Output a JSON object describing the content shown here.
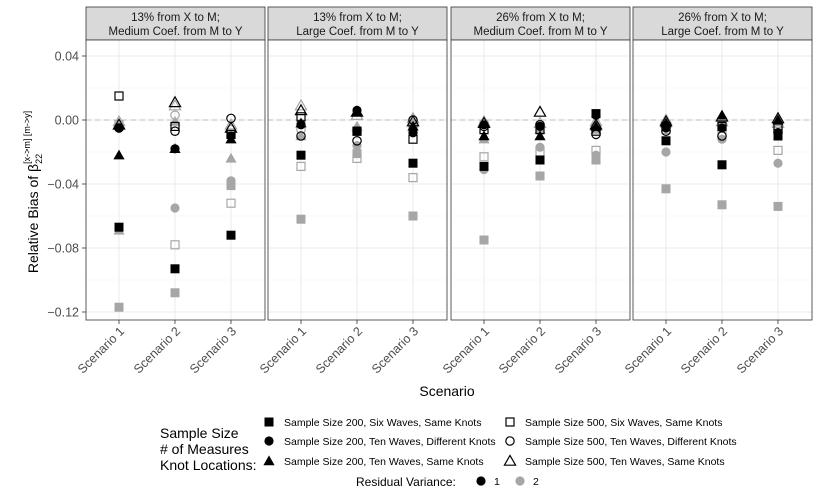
{
  "chart_data": {
    "type": "scatter",
    "ylabel_main": "Relative Bias of β",
    "ylabel_sub": "22",
    "ylabel_sup": "[x->m] [m->y]",
    "xlabel": "Scenario",
    "categories": [
      "Scenario 1",
      "Scenario 2",
      "Scenario 3"
    ],
    "ylim": [
      -0.125,
      0.05
    ],
    "yticks": [
      0.04,
      0.0,
      -0.04,
      -0.08,
      -0.12
    ],
    "ytick_labels": [
      "0.04",
      "0.00",
      "−0.04",
      "−0.08",
      "−0.12"
    ],
    "reference_line": 0,
    "panels": [
      {
        "title_line1": "13% from X to M;",
        "title_line2": "Medium Coef. from M to Y",
        "series": [
          {
            "condition": "n200_six_same",
            "variance": 1,
            "values": [
              -0.067,
              -0.093,
              -0.072
            ]
          },
          {
            "condition": "n200_six_same",
            "variance": 2,
            "values": [
              -0.117,
              -0.108,
              -0.041
            ]
          },
          {
            "condition": "n200_ten_diff",
            "variance": 1,
            "values": [
              -0.005,
              -0.018,
              -0.01
            ]
          },
          {
            "condition": "n200_ten_diff",
            "variance": 2,
            "values": [
              -0.004,
              -0.055,
              -0.038
            ]
          },
          {
            "condition": "n200_ten_same",
            "variance": 1,
            "values": [
              -0.022,
              -0.018,
              -0.012
            ]
          },
          {
            "condition": "n200_ten_same",
            "variance": 2,
            "values": [
              -0.069,
              -0.001,
              -0.024
            ]
          },
          {
            "condition": "n500_six_same",
            "variance": 1,
            "values": [
              0.015,
              -0.004,
              -0.009
            ]
          },
          {
            "condition": "n500_six_same",
            "variance": 2,
            "values": [
              -0.003,
              -0.078,
              -0.052
            ]
          },
          {
            "condition": "n500_ten_diff",
            "variance": 1,
            "values": [
              -0.005,
              -0.007,
              0.001
            ]
          },
          {
            "condition": "n500_ten_diff",
            "variance": 2,
            "values": [
              -0.005,
              0.003,
              -0.006
            ]
          },
          {
            "condition": "n500_ten_same",
            "variance": 1,
            "values": [
              -0.003,
              0.011,
              -0.005
            ]
          },
          {
            "condition": "n500_ten_same",
            "variance": 2,
            "values": [
              -0.001,
              0.009,
              -0.003
            ]
          }
        ]
      },
      {
        "title_line1": "13% from X to M;",
        "title_line2": "Large Coef. from M to Y",
        "series": [
          {
            "condition": "n200_six_same",
            "variance": 1,
            "values": [
              -0.022,
              -0.007,
              -0.027
            ]
          },
          {
            "condition": "n200_six_same",
            "variance": 2,
            "values": [
              -0.062,
              -0.021,
              -0.06
            ]
          },
          {
            "condition": "n200_ten_diff",
            "variance": 1,
            "values": [
              -0.003,
              0.006,
              -0.008
            ]
          },
          {
            "condition": "n200_ten_diff",
            "variance": 2,
            "values": [
              -0.002,
              -0.016,
              -0.005
            ]
          },
          {
            "condition": "n200_ten_same",
            "variance": 1,
            "values": [
              -0.002,
              0.005,
              -0.004
            ]
          },
          {
            "condition": "n200_ten_same",
            "variance": 2,
            "values": [
              -0.01,
              -0.004,
              -0.002
            ]
          },
          {
            "condition": "n500_six_same",
            "variance": 1,
            "values": [
              0.002,
              -0.007,
              -0.012
            ]
          },
          {
            "condition": "n500_six_same",
            "variance": 2,
            "values": [
              -0.029,
              -0.024,
              -0.036
            ]
          },
          {
            "condition": "n500_ten_diff",
            "variance": 1,
            "values": [
              -0.01,
              -0.013,
              0.0
            ]
          },
          {
            "condition": "n500_ten_diff",
            "variance": 2,
            "values": [
              -0.006,
              -0.007,
              -0.004
            ]
          },
          {
            "condition": "n500_ten_same",
            "variance": 1,
            "values": [
              0.006,
              0.005,
              -0.001
            ]
          },
          {
            "condition": "n500_ten_same",
            "variance": 2,
            "values": [
              0.009,
              0.003,
              0.001
            ]
          }
        ]
      },
      {
        "title_line1": "26% from X to M;",
        "title_line2": "Medium Coef. from M to Y",
        "series": [
          {
            "condition": "n200_six_same",
            "variance": 1,
            "values": [
              -0.029,
              -0.025,
              0.004
            ]
          },
          {
            "condition": "n200_six_same",
            "variance": 2,
            "values": [
              -0.075,
              -0.035,
              -0.025
            ]
          },
          {
            "condition": "n200_ten_diff",
            "variance": 1,
            "values": [
              -0.003,
              -0.004,
              0.003
            ]
          },
          {
            "condition": "n200_ten_diff",
            "variance": 2,
            "values": [
              -0.031,
              -0.017,
              -0.022
            ]
          },
          {
            "condition": "n200_ten_same",
            "variance": 1,
            "values": [
              -0.01,
              -0.01,
              -0.004
            ]
          },
          {
            "condition": "n200_ten_same",
            "variance": 2,
            "values": [
              -0.012,
              -0.006,
              -0.006
            ]
          },
          {
            "condition": "n500_six_same",
            "variance": 1,
            "values": [
              -0.006,
              -0.006,
              -0.007
            ]
          },
          {
            "condition": "n500_six_same",
            "variance": 2,
            "values": [
              -0.023,
              -0.02,
              -0.019
            ]
          },
          {
            "condition": "n500_ten_diff",
            "variance": 1,
            "values": [
              -0.004,
              -0.003,
              -0.009
            ]
          },
          {
            "condition": "n500_ten_diff",
            "variance": 2,
            "values": [
              -0.002,
              -0.003,
              -0.004
            ]
          },
          {
            "condition": "n500_ten_same",
            "variance": 1,
            "values": [
              -0.002,
              0.005,
              -0.003
            ]
          },
          {
            "condition": "n500_ten_same",
            "variance": 2,
            "values": [
              -0.001,
              -0.002,
              -0.001
            ]
          }
        ]
      },
      {
        "title_line1": "26% from X to M;",
        "title_line2": "Large Coef. from M to Y",
        "series": [
          {
            "condition": "n200_six_same",
            "variance": 1,
            "values": [
              -0.013,
              -0.028,
              -0.01
            ]
          },
          {
            "condition": "n200_six_same",
            "variance": 2,
            "values": [
              -0.043,
              -0.053,
              -0.054
            ]
          },
          {
            "condition": "n200_ten_diff",
            "variance": 1,
            "values": [
              -0.005,
              -0.005,
              -0.008
            ]
          },
          {
            "condition": "n200_ten_diff",
            "variance": 2,
            "values": [
              -0.02,
              -0.012,
              -0.027
            ]
          },
          {
            "condition": "n200_ten_same",
            "variance": 1,
            "values": [
              -0.002,
              0.003,
              0.0
            ]
          },
          {
            "condition": "n200_ten_same",
            "variance": 2,
            "values": [
              -0.002,
              -0.001,
              -0.001
            ]
          },
          {
            "condition": "n500_six_same",
            "variance": 1,
            "values": [
              -0.004,
              -0.004,
              -0.005
            ]
          },
          {
            "condition": "n500_six_same",
            "variance": 2,
            "values": [
              -0.006,
              -0.009,
              -0.019
            ]
          },
          {
            "condition": "n500_ten_diff",
            "variance": 1,
            "values": [
              -0.007,
              -0.01,
              -0.008
            ]
          },
          {
            "condition": "n500_ten_diff",
            "variance": 2,
            "values": [
              -0.004,
              -0.003,
              -0.006
            ]
          },
          {
            "condition": "n500_ten_same",
            "variance": 1,
            "values": [
              -0.001,
              0.002,
              0.001
            ]
          },
          {
            "condition": "n500_ten_same",
            "variance": 2,
            "values": [
              0.0,
              -0.001,
              -0.002
            ]
          }
        ]
      }
    ],
    "legend": {
      "title_lines": [
        "Sample Size",
        "# of Measures",
        "Knot Locations:"
      ],
      "items": [
        {
          "key": "n200_six_same",
          "shape": "filled-square",
          "label": "Sample Size 200, Six Waves, Same Knots"
        },
        {
          "key": "n500_six_same",
          "shape": "open-square",
          "label": "Sample Size 500, Six Waves, Same Knots"
        },
        {
          "key": "n200_ten_diff",
          "shape": "filled-circle",
          "label": "Sample Size 200, Ten Waves, Different Knots"
        },
        {
          "key": "n500_ten_diff",
          "shape": "open-circle",
          "label": "Sample Size 500, Ten Waves, Different Knots"
        },
        {
          "key": "n200_ten_same",
          "shape": "filled-triangle",
          "label": "Sample Size 200, Ten Waves, Same Knots"
        },
        {
          "key": "n500_ten_same",
          "shape": "open-triangle",
          "label": "Sample Size 500, Ten Waves, Same Knots"
        }
      ],
      "variance_title": "Residual Variance:",
      "variance_items": [
        {
          "level": 1,
          "label": "1",
          "color": "#000000"
        },
        {
          "level": 2,
          "label": "2",
          "color": "#a6a6a6"
        }
      ]
    },
    "colors": {
      "variance_1": "#000000",
      "variance_2": "#a6a6a6",
      "strip_bg": "#d9d9d9",
      "grid": "#ebebeb",
      "ref_line": "#bdbdbd"
    }
  }
}
